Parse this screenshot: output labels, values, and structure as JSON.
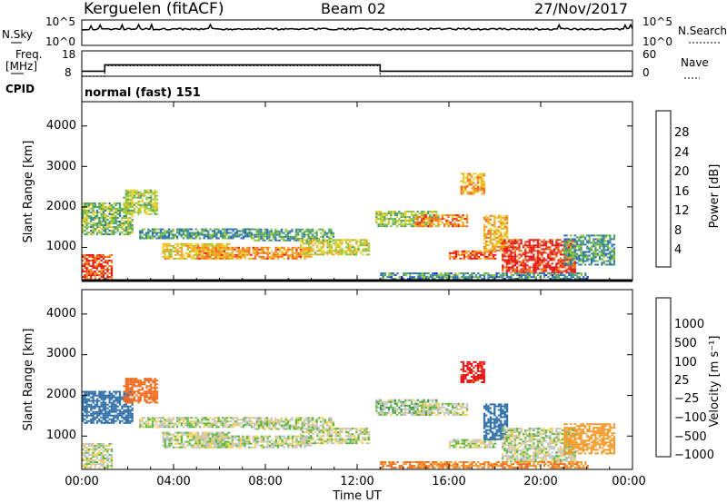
{
  "header": {
    "radar": "Kerguelen (fitACF)",
    "beam": "Beam 02",
    "date": "27/Nov/2017"
  },
  "panels": {
    "nsky": {
      "label": "N.Sky",
      "ticks": [
        "10^5",
        "10^0"
      ]
    },
    "nsearch": {
      "label": "N.Search",
      "ticks": [
        "10^5",
        "10^0"
      ]
    },
    "freq": {
      "label_line1": "Freq.",
      "label_line2": "[MHz]",
      "ticks": [
        "18",
        "8"
      ]
    },
    "nave": {
      "label": "Nave",
      "ticks": [
        "60",
        "0"
      ]
    },
    "cpid": {
      "label": "CPID",
      "value": "normal (fast) 151"
    }
  },
  "axes": {
    "xlabel": "Time UT",
    "xticks": [
      "00:00",
      "04:00",
      "08:00",
      "12:00",
      "16:00",
      "20:00",
      "00:00"
    ],
    "ylabel": "Slant Range [km]",
    "yticks": [
      "1000",
      "2000",
      "3000",
      "4000"
    ]
  },
  "power_bar": {
    "label": "Power [dB]",
    "ticks": [
      "4",
      "8",
      "12",
      "16",
      "20",
      "24",
      "28"
    ],
    "colors": [
      "#1f1fdd",
      "#2e6fb5",
      "#4b9d6e",
      "#8cc43c",
      "#e8cf2a",
      "#f2a31e",
      "#f06a1d",
      "#e31414"
    ]
  },
  "velocity_bar": {
    "label": "Velocity [m s⁻¹]",
    "ticks": [
      "1000",
      "500",
      "100",
      "25",
      "−25",
      "−100",
      "−500",
      "−1000"
    ],
    "colors": [
      "#2244cc",
      "#2f6fa8",
      "#3d8f5a",
      "#5fb83a",
      "#c4c4c4",
      "#f0d060",
      "#f29a2a",
      "#f06a1d",
      "#e31414"
    ]
  },
  "chart_data": {
    "type": "heatmap",
    "x_range_hours": [
      0,
      24
    ],
    "y_range_km": [
      180,
      4600
    ],
    "power_db_range": [
      0,
      30
    ],
    "velocity_range": [
      -1000,
      1000
    ],
    "frequency_mhz": [
      {
        "from_hour": 0,
        "to_hour": 1.0,
        "value": 10
      },
      {
        "from_hour": 1.0,
        "to_hour": 13.0,
        "value": 12.5
      },
      {
        "from_hour": 13.0,
        "to_hour": 24,
        "value": 10
      }
    ],
    "nave": [
      {
        "from_hour": 0,
        "to_hour": 1.0,
        "value": 0
      },
      {
        "from_hour": 1.0,
        "to_hour": 13.0,
        "value": 25
      },
      {
        "from_hour": 13.0,
        "to_hour": 24,
        "value": 0
      }
    ],
    "scatter_regions": [
      {
        "t0": 0.0,
        "t1": 1.3,
        "r0": 200,
        "r1": 800,
        "power": 26,
        "velocity": 0
      },
      {
        "t0": 0.0,
        "t1": 2.2,
        "r0": 1300,
        "r1": 2100,
        "power": 12,
        "velocity": 500
      },
      {
        "t0": 1.8,
        "t1": 3.3,
        "r0": 1800,
        "r1": 2400,
        "power": 14,
        "velocity": -400
      },
      {
        "t0": 2.5,
        "t1": 7.5,
        "r0": 1200,
        "r1": 1450,
        "power": 9,
        "velocity": 0
      },
      {
        "t0": 3.5,
        "t1": 6.5,
        "r0": 700,
        "r1": 1100,
        "power": 18,
        "velocity": 0
      },
      {
        "t0": 5.0,
        "t1": 10.0,
        "r0": 700,
        "r1": 1000,
        "power": 22,
        "velocity": 0
      },
      {
        "t0": 7.5,
        "t1": 11.0,
        "r0": 1150,
        "r1": 1450,
        "power": 10,
        "velocity": 0
      },
      {
        "t0": 9.5,
        "t1": 12.5,
        "r0": 800,
        "r1": 1200,
        "power": 16,
        "velocity": 0
      },
      {
        "t0": 12.8,
        "t1": 15.5,
        "r0": 1500,
        "r1": 1900,
        "power": 13,
        "velocity": 25
      },
      {
        "t0": 14.5,
        "t1": 16.8,
        "r0": 1500,
        "r1": 1800,
        "power": 22,
        "velocity": 0
      },
      {
        "t0": 16.5,
        "t1": 17.5,
        "r0": 2300,
        "r1": 2800,
        "power": 20,
        "velocity": -800
      },
      {
        "t0": 16.0,
        "t1": 18.0,
        "r0": 700,
        "r1": 900,
        "power": 25,
        "velocity": 0
      },
      {
        "t0": 17.5,
        "t1": 18.5,
        "r0": 900,
        "r1": 1800,
        "power": 20,
        "velocity": 400
      },
      {
        "t0": 18.3,
        "t1": 21.5,
        "r0": 350,
        "r1": 1200,
        "power": 27,
        "velocity": 0
      },
      {
        "t0": 21.0,
        "t1": 23.2,
        "r0": 550,
        "r1": 1300,
        "power": 9,
        "velocity": -150
      },
      {
        "t0": 13.0,
        "t1": 22.0,
        "r0": 200,
        "r1": 380,
        "power": 8,
        "velocity": -300
      }
    ]
  }
}
